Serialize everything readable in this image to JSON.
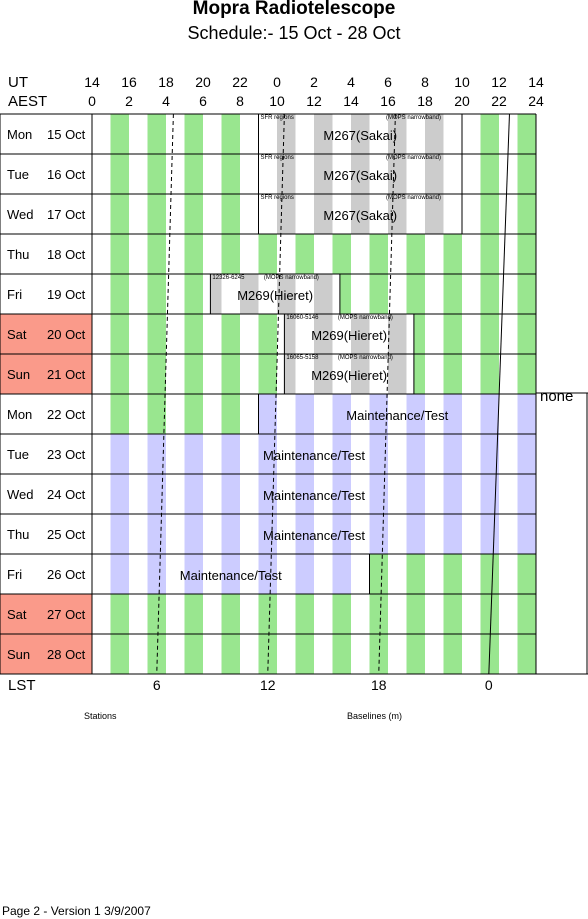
{
  "title": "Mopra Radiotelescope",
  "subtitle": "Schedule:- 15 Oct - 28 Oct",
  "axis": {
    "ut_label": "UT",
    "aest_label": "AEST",
    "lst_label": "LST",
    "ut_ticks": [
      "14",
      "16",
      "18",
      "20",
      "22",
      "0",
      "2",
      "4",
      "6",
      "8",
      "10",
      "12",
      "14"
    ],
    "aest_ticks": [
      "0",
      "2",
      "4",
      "6",
      "8",
      "10",
      "12",
      "14",
      "16",
      "18",
      "20",
      "22",
      "24"
    ],
    "lst_ticks": [
      {
        "label": "6",
        "aest_hour": 3.5
      },
      {
        "label": "12",
        "aest_hour": 9.5
      },
      {
        "label": "18",
        "aest_hour": 15.5
      },
      {
        "label": "0",
        "aest_hour": 21.45
      }
    ]
  },
  "days": [
    {
      "dow": "Mon",
      "date": "15 Oct",
      "weekend": false
    },
    {
      "dow": "Tue",
      "date": "16 Oct",
      "weekend": false
    },
    {
      "dow": "Wed",
      "date": "17 Oct",
      "weekend": false
    },
    {
      "dow": "Thu",
      "date": "18 Oct",
      "weekend": false
    },
    {
      "dow": "Fri",
      "date": "19 Oct",
      "weekend": false
    },
    {
      "dow": "Sat",
      "date": "20 Oct",
      "weekend": true
    },
    {
      "dow": "Sun",
      "date": "21 Oct",
      "weekend": true
    },
    {
      "dow": "Mon",
      "date": "22 Oct",
      "weekend": false
    },
    {
      "dow": "Tue",
      "date": "23 Oct",
      "weekend": false
    },
    {
      "dow": "Wed",
      "date": "24 Oct",
      "weekend": false
    },
    {
      "dow": "Thu",
      "date": "25 Oct",
      "weekend": false
    },
    {
      "dow": "Fri",
      "date": "26 Oct",
      "weekend": false
    },
    {
      "dow": "Sat",
      "date": "27 Oct",
      "weekend": true
    },
    {
      "dow": "Sun",
      "date": "28 Oct",
      "weekend": true
    }
  ],
  "stripe_pattern": [
    {
      "day": 0,
      "kind": "green"
    },
    {
      "day": 1,
      "kind": "green"
    },
    {
      "day": 2,
      "kind": "green"
    },
    {
      "day": 3,
      "kind": "green"
    },
    {
      "day": 4,
      "kind": "green"
    },
    {
      "day": 5,
      "kind": "green"
    },
    {
      "day": 6,
      "kind": "green"
    },
    {
      "day": 7,
      "kind": "green",
      "until": 9,
      "after": "blue"
    },
    {
      "day": 8,
      "kind": "blue"
    },
    {
      "day": 9,
      "kind": "blue"
    },
    {
      "day": 10,
      "kind": "blue"
    },
    {
      "day": 11,
      "kind": "blue",
      "until": 15,
      "after": "green"
    },
    {
      "day": 12,
      "kind": "green"
    },
    {
      "day": 13,
      "kind": "green"
    }
  ],
  "blocks": [
    {
      "day": 0,
      "start": 9,
      "end": 20,
      "label": "M267(Sakai)",
      "fill": "grey",
      "notes": [
        "SFR regions",
        "(MOPS narrowband)"
      ]
    },
    {
      "day": 1,
      "start": 9,
      "end": 20,
      "label": "M267(Sakai)",
      "fill": "grey",
      "notes": [
        "SFR regions",
        "(MOPS narrowband)"
      ]
    },
    {
      "day": 2,
      "start": 9,
      "end": 20,
      "label": "M267(Sakai)",
      "fill": "grey",
      "notes": [
        "SFR regions",
        "(MOPS narrowband)"
      ]
    },
    {
      "day": 4,
      "start": 6.4,
      "end": 13.4,
      "label": "M269(Hieret)",
      "fill": "grey",
      "notes": [
        "12326-6245",
        "(MOPS narrowband)"
      ]
    },
    {
      "day": 5,
      "start": 10.4,
      "end": 17.4,
      "label": "M269(Hieret)",
      "fill": "grey",
      "notes": [
        "16060-5146",
        "(MOPS narrowband)"
      ]
    },
    {
      "day": 6,
      "start": 10.4,
      "end": 17.4,
      "label": "M269(Hieret)",
      "fill": "grey",
      "notes": [
        "16065-5158",
        "(MOPS narrowband)"
      ]
    },
    {
      "day": 7,
      "start": 9,
      "end": 24,
      "label": "Maintenance/Test",
      "fill": "blue",
      "notes": []
    },
    {
      "day": 8,
      "start": 0,
      "end": 24,
      "label": "Maintenance/Test",
      "fill": "blue",
      "notes": []
    },
    {
      "day": 9,
      "start": 0,
      "end": 24,
      "label": "Maintenance/Test",
      "fill": "blue",
      "notes": []
    },
    {
      "day": 10,
      "start": 0,
      "end": 24,
      "label": "Maintenance/Test",
      "fill": "blue",
      "notes": []
    },
    {
      "day": 11,
      "start": 0,
      "end": 15,
      "label": "Maintenance/Test",
      "fill": "blue",
      "notes": []
    }
  ],
  "side_note": "none",
  "captions": {
    "left": "Stations",
    "right": "Baselines (m)"
  },
  "footer": "Page 2 - Version 1  3/9/2007",
  "colors": {
    "green": "#99e68f",
    "blue": "#ccccff",
    "grey": "#cccccc",
    "weekend": "#fa9a8a",
    "grid": "#000000"
  }
}
